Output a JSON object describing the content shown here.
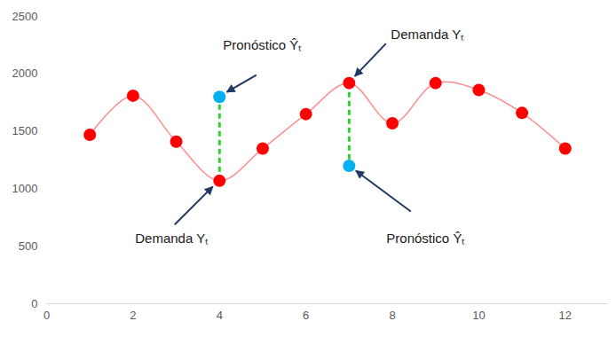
{
  "chart_data": {
    "type": "line",
    "x": [
      1,
      2,
      3,
      4,
      5,
      6,
      7,
      8,
      9,
      10,
      11,
      12
    ],
    "xlim": [
      0,
      13
    ],
    "xticks": [
      0,
      2,
      4,
      6,
      8,
      10,
      12
    ],
    "ylim": [
      0,
      2500
    ],
    "yticks": [
      0,
      500,
      1000,
      1500,
      2000,
      2500
    ],
    "grid": false,
    "series": [
      {
        "type": "line",
        "color": "#ff0000",
        "marker": "circle",
        "values": [
          1470,
          1810,
          1410,
          1070,
          1350,
          1650,
          1920,
          1570,
          1920,
          1860,
          1660,
          1350
        ]
      },
      {
        "type": "scatter",
        "color": "#00b0f0",
        "marker": "circle",
        "values": [
          null,
          null,
          null,
          1800,
          null,
          null,
          1200,
          null,
          null,
          null,
          null,
          null
        ]
      }
    ],
    "annotations": [
      {
        "text": "Pronóstico Ŷₜ",
        "x": 4,
        "y": 1800
      },
      {
        "text": "Demanda Yₜ",
        "x": 7,
        "y": 1920
      },
      {
        "text": "Demanda Yₜ",
        "x": 4,
        "y": 1070
      },
      {
        "text": "Pronóstico Ŷₜ",
        "x": 7,
        "y": 1200
      }
    ]
  }
}
